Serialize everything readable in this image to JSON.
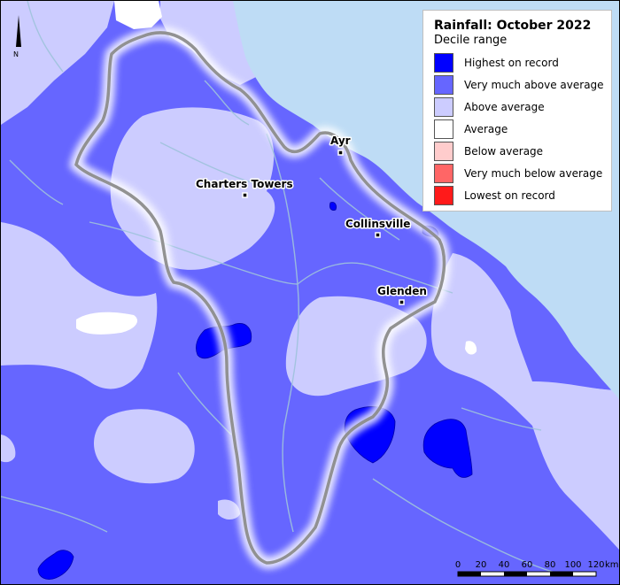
{
  "legend": {
    "title": "Rainfall: October 2022",
    "subtitle": "Decile range",
    "items": [
      {
        "label": "Highest on record",
        "color": "#0000ff"
      },
      {
        "label": "Very much above average",
        "color": "#6666ff"
      },
      {
        "label": "Above average",
        "color": "#ccccff"
      },
      {
        "label": "Average",
        "color": "#ffffff"
      },
      {
        "label": "Below average",
        "color": "#ffcccc"
      },
      {
        "label": "Very much below average",
        "color": "#ff6666"
      },
      {
        "label": "Lowest on record",
        "color": "#ff1a1a"
      }
    ]
  },
  "towns": {
    "ayr": "Ayr",
    "charters_towers": "Charters Towers",
    "collinsville": "Collinsville",
    "glenden": "Glenden"
  },
  "north_arrow": {
    "label": "N"
  },
  "scale_bar": {
    "ticks": [
      "0",
      "20",
      "40",
      "60",
      "80",
      "100",
      "120"
    ],
    "unit": "km"
  },
  "colors": {
    "ocean": "#bedcf5",
    "river": "#9fc3dc",
    "boundary": "#8c8c8c"
  }
}
